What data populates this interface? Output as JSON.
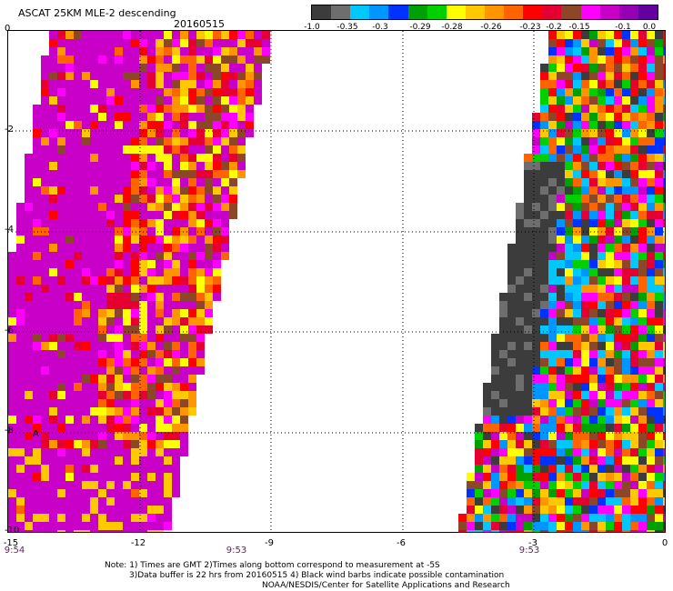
{
  "header": {
    "title": "ASCAT 25KM MLE-2 descending",
    "date": "20160515"
  },
  "colorbar": {
    "colors": [
      "#3c3c3c",
      "#6e6e6e",
      "#00c8ff",
      "#0096ff",
      "#0032ff",
      "#00a000",
      "#00d000",
      "#ffff00",
      "#ffc800",
      "#ff9600",
      "#ff6400",
      "#ff0000",
      "#e60032",
      "#8c4628",
      "#ff00ff",
      "#c800c8",
      "#9600b4",
      "#6400a0"
    ],
    "labels": [
      "-1.0",
      "-0.35",
      "-0.3",
      "-0.29",
      "-0.28",
      "-0.26",
      "-0.23",
      "-0.2",
      "-0.15",
      "-0.1",
      "0.0"
    ]
  },
  "axes": {
    "x_ticks": [
      "-15",
      "-12",
      "-9",
      "-6",
      "-3",
      "0"
    ],
    "y_ticks": [
      "0",
      "-2",
      "-4",
      "-6",
      "-8",
      "-10"
    ],
    "x_range": [
      -15,
      0
    ],
    "y_range": [
      -10,
      0
    ],
    "grid": "dotted"
  },
  "times": [
    "9:54",
    "9:53",
    "9:53"
  ],
  "marker": "A",
  "footer": {
    "line1": "Note: 1) Times are GMT 2)Times along bottom correspond to measurement at -5S",
    "line2": "3)Data buffer is 22 hrs from 20160515 4) Black wind barbs indicate possible contamination",
    "line3": "NOAA/NESDIS/Center for Satellite Applications and Research"
  }
}
